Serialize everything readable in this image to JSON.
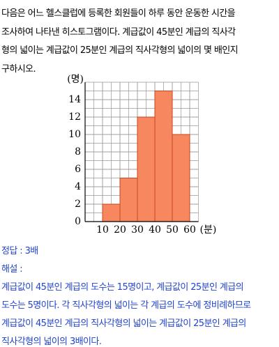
{
  "question": {
    "lines": [
      "다음은 어느 헬스클럽에 등록한 회원들이 하루 동안 운동한 시간을",
      "조사하여 나타낸 히스토그램이다. 계급값이 45분인 계급의 직사각",
      "형의 넓이는 계급값이 25분인 계급의 직사각형의 넓이의 몇 배인지",
      "구하시오."
    ]
  },
  "chart_data": {
    "type": "histogram",
    "y_label": "(명)",
    "x_label": "(분)",
    "bins": [
      10,
      20,
      30,
      40,
      50,
      60
    ],
    "values": [
      2,
      5,
      12,
      15,
      10
    ],
    "color": "#f7875f",
    "xlim": [
      0,
      65
    ],
    "xticks": [
      10,
      20,
      30,
      40,
      50,
      60
    ],
    "ylim": [
      0,
      16
    ],
    "yticks": [
      0,
      2,
      4,
      6,
      8,
      10,
      12,
      14
    ],
    "grid": true
  },
  "answer": {
    "line": "정답 : 3배",
    "explanation_title": "해설 :",
    "explanation": [
      "계급값이 45분인 계급의 도수는 15명이고, 계급값이 25분인 계급의",
      "도수는 5명이다. 각 직사각형의 넓이는 각 계급의 도수에 정비례하므로",
      "계급값이 45분인 계급의 직사각형의 넓이는 계급값이 25분인 계급의",
      "직사각형의 넓이의 3배이다."
    ]
  }
}
